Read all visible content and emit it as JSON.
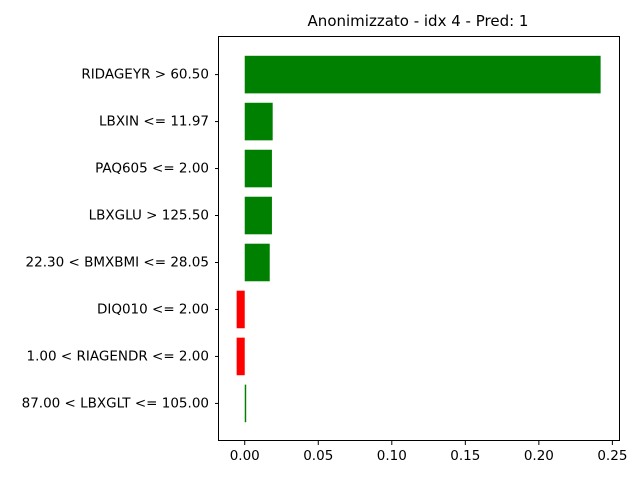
{
  "chart_data": {
    "type": "bar",
    "orientation": "horizontal",
    "title": "Anonimizzato - idx 4 - Pred: 1",
    "xlabel": "",
    "ylabel": "",
    "categories": [
      "RIDAGEYR > 60.50",
      "LBXIN <= 11.97",
      "PAQ605 <= 2.00",
      "LBXGLU > 125.50",
      "22.30 < BMXBMI <= 28.05",
      "DIQ010 <= 2.00",
      "1.00 < RIAGENDR <= 2.00",
      "87.00 < LBXGLT <= 105.00"
    ],
    "values": [
      0.242,
      0.019,
      0.0185,
      0.0185,
      0.017,
      -0.0055,
      -0.0055,
      0.001
    ],
    "xlim": [
      -0.0175,
      0.2545
    ],
    "xticks": [
      0.0,
      0.05,
      0.1,
      0.15,
      0.2,
      0.25
    ],
    "xtick_labels": [
      "0.00",
      "0.05",
      "0.10",
      "0.15",
      "0.20",
      "0.25"
    ],
    "grid": false,
    "colors": {
      "positive": "#008000",
      "negative": "#ff0000"
    }
  }
}
